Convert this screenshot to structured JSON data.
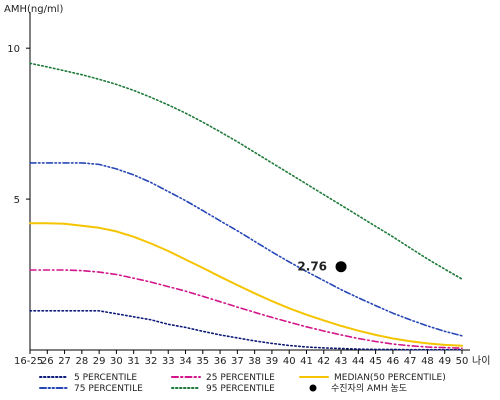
{
  "chart_data": {
    "type": "line",
    "ylabel": "AMH(ng/ml)",
    "xlabel": "나이",
    "ylim": [
      0,
      11
    ],
    "yticks": [
      5,
      10
    ],
    "x": [
      "16-25",
      "26",
      "27",
      "28",
      "29",
      "30",
      "31",
      "32",
      "33",
      "34",
      "35",
      "36",
      "37",
      "38",
      "39",
      "40",
      "41",
      "42",
      "43",
      "44",
      "45",
      "46",
      "47",
      "48",
      "49",
      "50"
    ],
    "series": [
      {
        "name": "5 PERCENTILE",
        "color": "#0b1a7a",
        "dash": "dotted",
        "values": [
          1.3,
          1.3,
          1.3,
          1.3,
          1.3,
          1.2,
          1.1,
          1.0,
          0.85,
          0.75,
          0.62,
          0.5,
          0.4,
          0.3,
          0.22,
          0.15,
          0.1,
          0.07,
          0.05,
          0.03,
          0.02,
          0.02,
          0.01,
          0.01,
          0.01,
          0.01
        ]
      },
      {
        "name": "25 PERCENTILE",
        "color": "#d4148a",
        "dash": "dashdot",
        "values": [
          2.65,
          2.65,
          2.65,
          2.63,
          2.58,
          2.5,
          2.38,
          2.25,
          2.1,
          1.95,
          1.78,
          1.6,
          1.42,
          1.25,
          1.08,
          0.92,
          0.77,
          0.63,
          0.5,
          0.38,
          0.28,
          0.2,
          0.14,
          0.1,
          0.08,
          0.06
        ]
      },
      {
        "name": "MEDIAN(50 PERCENTILE)",
        "color": "#f5c400",
        "dash": "solid",
        "values": [
          4.2,
          4.2,
          4.18,
          4.12,
          4.05,
          3.93,
          3.75,
          3.53,
          3.28,
          3.0,
          2.72,
          2.43,
          2.15,
          1.88,
          1.62,
          1.38,
          1.17,
          0.98,
          0.8,
          0.64,
          0.5,
          0.38,
          0.29,
          0.22,
          0.17,
          0.14
        ]
      },
      {
        "name": "75 PERCENTILE",
        "color": "#2747b8",
        "dash": "dashdotdot",
        "values": [
          6.2,
          6.2,
          6.2,
          6.2,
          6.15,
          6.0,
          5.8,
          5.55,
          5.25,
          4.95,
          4.62,
          4.28,
          3.95,
          3.6,
          3.25,
          2.92,
          2.6,
          2.3,
          2.0,
          1.73,
          1.47,
          1.22,
          1.0,
          0.8,
          0.62,
          0.47
        ]
      },
      {
        "name": "95 PERCENTILE",
        "color": "#1e7a3a",
        "dash": "dotted",
        "values": [
          9.5,
          9.38,
          9.25,
          9.12,
          8.97,
          8.8,
          8.6,
          8.37,
          8.12,
          7.85,
          7.55,
          7.23,
          6.9,
          6.55,
          6.2,
          5.85,
          5.5,
          5.15,
          4.8,
          4.45,
          4.1,
          3.75,
          3.38,
          3.02,
          2.68,
          2.35
        ]
      }
    ],
    "patient": {
      "label": "수진자의 AMH 농도",
      "x": "43",
      "value": 2.76,
      "value_label": "2.76",
      "color": "#000000"
    }
  }
}
